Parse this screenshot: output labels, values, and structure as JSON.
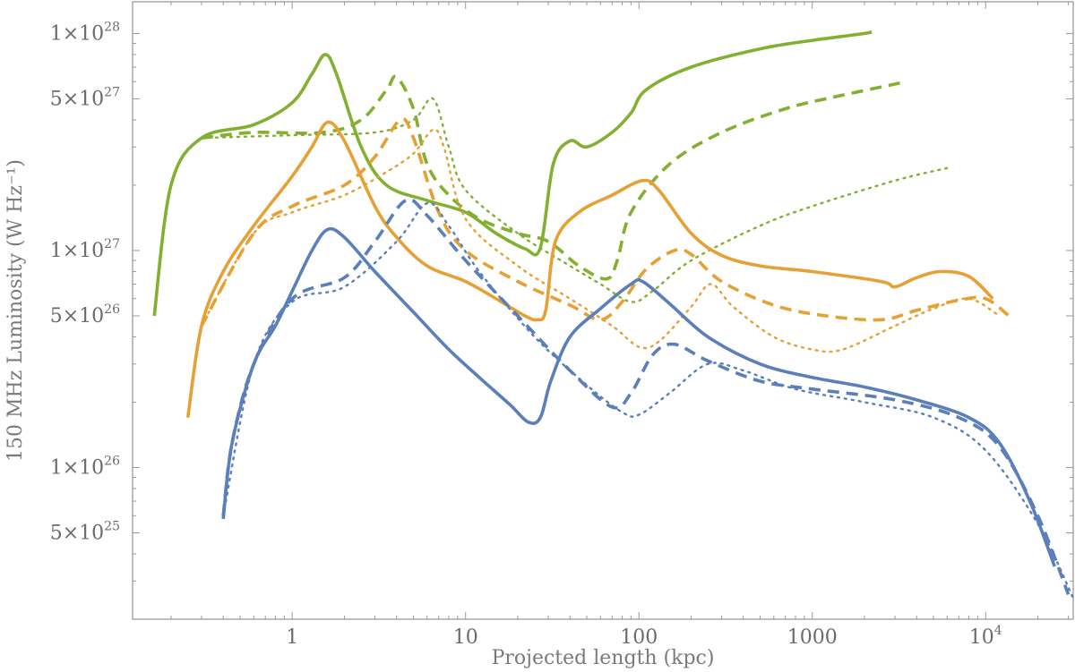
{
  "chart_data": {
    "type": "line",
    "title": "",
    "xlabel": "Projected length (kpc)",
    "ylabel": "150 MHz Luminosity (W Hz⁻¹)",
    "xscale": "log",
    "yscale": "log",
    "xlim": [
      0.12,
      32000
    ],
    "ylim": [
      2e+25,
      1.4e+28
    ],
    "grid": false,
    "x_ticks": [
      {
        "value": 1,
        "label": "1"
      },
      {
        "value": 10,
        "label": "10"
      },
      {
        "value": 100,
        "label": "100"
      },
      {
        "value": 1000,
        "label": "1000"
      },
      {
        "value": 10000,
        "label": "10",
        "sup": "4"
      }
    ],
    "y_ticks": [
      {
        "value": 1e+28,
        "mant": "1×10",
        "sup": "28"
      },
      {
        "value": 5e+27,
        "mant": "5×10",
        "sup": "27"
      },
      {
        "value": 1e+27,
        "mant": "1×10",
        "sup": "27"
      },
      {
        "value": 5e+26,
        "mant": "5×10",
        "sup": "26"
      },
      {
        "value": 1e+26,
        "mant": "1×10",
        "sup": "26"
      },
      {
        "value": 5e+25,
        "mant": "5×10",
        "sup": "25"
      }
    ],
    "colors": {
      "green": "#83b032",
      "orange": "#e6a033",
      "blue": "#5a7fba"
    },
    "series": [
      {
        "name": "green-solid",
        "color": "green",
        "style": "solid",
        "points": [
          [
            0.16,
            5e+26
          ],
          [
            0.2,
            2e+27
          ],
          [
            0.3,
            3.3e+27
          ],
          [
            0.6,
            3.8e+27
          ],
          [
            1.0,
            4.8e+27
          ],
          [
            1.3,
            6.5e+27
          ],
          [
            1.55,
            8e+27
          ],
          [
            1.8,
            6.5e+27
          ],
          [
            2.5,
            3e+27
          ],
          [
            3.5,
            2e+27
          ],
          [
            6,
            1.7e+27
          ],
          [
            10,
            1.5e+27
          ],
          [
            15,
            1.2e+27
          ],
          [
            22,
            1.02e+27
          ],
          [
            27,
            1.03e+27
          ],
          [
            32,
            2.5e+27
          ],
          [
            40,
            3.2e+27
          ],
          [
            50,
            3e+27
          ],
          [
            70,
            3.5e+27
          ],
          [
            90,
            4.3e+27
          ],
          [
            110,
            5.5e+27
          ],
          [
            200,
            7e+27
          ],
          [
            500,
            8.5e+27
          ],
          [
            1000,
            9.3e+27
          ],
          [
            2000,
            1e+28
          ],
          [
            2200,
            1.02e+28
          ]
        ]
      },
      {
        "name": "green-dashed",
        "color": "green",
        "style": "dashed",
        "points": [
          [
            0.3,
            3.3e+27
          ],
          [
            0.6,
            3.5e+27
          ],
          [
            1.5,
            3.5e+27
          ],
          [
            2.5,
            4e+27
          ],
          [
            3.5,
            5.5e+27
          ],
          [
            4,
            6.3e+27
          ],
          [
            5,
            4.5e+27
          ],
          [
            6,
            2.5e+27
          ],
          [
            8,
            1.8e+27
          ],
          [
            12,
            1.4e+27
          ],
          [
            20,
            1.2e+27
          ],
          [
            30,
            1.1e+27
          ],
          [
            45,
            8.5e+26
          ],
          [
            65,
            7.4e+26
          ],
          [
            75,
            9e+26
          ],
          [
            90,
            1.5e+27
          ],
          [
            150,
            2.5e+27
          ],
          [
            300,
            3.5e+27
          ],
          [
            700,
            4.5e+27
          ],
          [
            1500,
            5.2e+27
          ],
          [
            3500,
            6e+27
          ]
        ]
      },
      {
        "name": "green-dotted",
        "color": "green",
        "style": "dotted",
        "points": [
          [
            0.3,
            3.3e+27
          ],
          [
            1,
            3.4e+27
          ],
          [
            3,
            3.5e+27
          ],
          [
            5,
            4e+27
          ],
          [
            6.5,
            5e+27
          ],
          [
            8,
            3e+27
          ],
          [
            10,
            1.9e+27
          ],
          [
            20,
            1.2e+27
          ],
          [
            40,
            8.5e+26
          ],
          [
            60,
            7e+26
          ],
          [
            90,
            5.8e+26
          ],
          [
            120,
            6.5e+26
          ],
          [
            200,
            9e+26
          ],
          [
            500,
            1.3e+27
          ],
          [
            1000,
            1.6e+27
          ],
          [
            3000,
            2.1e+27
          ],
          [
            6000,
            2.4e+27
          ]
        ]
      },
      {
        "name": "orange-solid",
        "color": "orange",
        "style": "solid",
        "points": [
          [
            0.25,
            1.7e+26
          ],
          [
            0.3,
            4.5e+26
          ],
          [
            0.4,
            8e+26
          ],
          [
            0.6,
            1.3e+27
          ],
          [
            1.0,
            2.2e+27
          ],
          [
            1.3,
            3e+27
          ],
          [
            1.6,
            3.9e+27
          ],
          [
            2.0,
            3.2e+27
          ],
          [
            3,
            1.6e+27
          ],
          [
            4,
            1.15e+27
          ],
          [
            6,
            8.5e+26
          ],
          [
            10,
            7.2e+26
          ],
          [
            15,
            6e+26
          ],
          [
            22,
            5e+26
          ],
          [
            26,
            4.8e+26
          ],
          [
            29,
            5.3e+26
          ],
          [
            33,
            1.1e+27
          ],
          [
            45,
            1.5e+27
          ],
          [
            70,
            1.8e+27
          ],
          [
            105,
            2.1e+27
          ],
          [
            130,
            1.9e+27
          ],
          [
            200,
            1.2e+27
          ],
          [
            300,
            9.5e+26
          ],
          [
            500,
            8.5e+26
          ],
          [
            1000,
            8e+26
          ],
          [
            2500,
            7.2e+26
          ],
          [
            3000,
            6.8e+26
          ],
          [
            4000,
            7.5e+26
          ],
          [
            5500,
            8e+26
          ],
          [
            8000,
            7.6e+26
          ],
          [
            11000,
            6e+26
          ]
        ]
      },
      {
        "name": "orange-dashed",
        "color": "orange",
        "style": "dashed",
        "points": [
          [
            0.3,
            4.5e+26
          ],
          [
            0.6,
            1.2e+27
          ],
          [
            1,
            1.6e+27
          ],
          [
            2,
            2e+27
          ],
          [
            3,
            2.7e+27
          ],
          [
            4.2,
            4e+27
          ],
          [
            5,
            3.3e+27
          ],
          [
            7,
            1.5e+27
          ],
          [
            10,
            1e+27
          ],
          [
            20,
            7.2e+26
          ],
          [
            40,
            5.6e+26
          ],
          [
            60,
            4.8e+26
          ],
          [
            80,
            5.8e+26
          ],
          [
            110,
            8.2e+26
          ],
          [
            160,
            1e+27
          ],
          [
            200,
            9.6e+26
          ],
          [
            300,
            7.2e+26
          ],
          [
            600,
            5.6e+26
          ],
          [
            1200,
            5e+26
          ],
          [
            2500,
            4.8e+26
          ],
          [
            4000,
            5.3e+26
          ],
          [
            7000,
            5.9e+26
          ],
          [
            10000,
            6e+26
          ],
          [
            14000,
            4.9e+26
          ]
        ]
      },
      {
        "name": "orange-dotted",
        "color": "orange",
        "style": "dotted",
        "points": [
          [
            0.3,
            4.5e+26
          ],
          [
            0.6,
            1.2e+27
          ],
          [
            1,
            1.5e+27
          ],
          [
            2,
            1.8e+27
          ],
          [
            3.5,
            2.3e+27
          ],
          [
            5,
            2.8e+27
          ],
          [
            6.5,
            3.6e+27
          ],
          [
            7.5,
            3e+27
          ],
          [
            10,
            1.4e+27
          ],
          [
            20,
            8.5e+26
          ],
          [
            40,
            6e+26
          ],
          [
            70,
            4.5e+26
          ],
          [
            100,
            3.6e+26
          ],
          [
            130,
            3.8e+26
          ],
          [
            200,
            5.5e+26
          ],
          [
            260,
            7e+26
          ],
          [
            350,
            5.5e+26
          ],
          [
            600,
            4e+26
          ],
          [
            1000,
            3.5e+26
          ],
          [
            1500,
            3.5e+26
          ],
          [
            3000,
            4.5e+26
          ],
          [
            5000,
            5.4e+26
          ],
          [
            8000,
            6e+26
          ],
          [
            12000,
            5e+26
          ]
        ]
      },
      {
        "name": "blue-solid",
        "color": "blue",
        "style": "solid",
        "points": [
          [
            0.4,
            5.8e+25
          ],
          [
            0.45,
            1.3e+26
          ],
          [
            0.6,
            3e+26
          ],
          [
            0.8,
            4.5e+26
          ],
          [
            1.0,
            6.5e+26
          ],
          [
            1.3,
            1e+27
          ],
          [
            1.6,
            1.25e+27
          ],
          [
            2,
            1.15e+27
          ],
          [
            3,
            8e+26
          ],
          [
            5,
            5.2e+26
          ],
          [
            8,
            3.5e+26
          ],
          [
            12,
            2.6e+26
          ],
          [
            18,
            1.95e+26
          ],
          [
            23,
            1.62e+26
          ],
          [
            27,
            1.7e+26
          ],
          [
            31,
            2.5e+26
          ],
          [
            40,
            4e+26
          ],
          [
            60,
            5.4e+26
          ],
          [
            90,
            7e+26
          ],
          [
            105,
            7.2e+26
          ],
          [
            150,
            5.7e+26
          ],
          [
            250,
            4e+26
          ],
          [
            500,
            3e+26
          ],
          [
            1000,
            2.6e+26
          ],
          [
            2000,
            2.35e+26
          ],
          [
            4000,
            2.05e+26
          ],
          [
            8000,
            1.7e+26
          ],
          [
            12000,
            1.3e+26
          ],
          [
            18000,
            7e+25
          ],
          [
            25000,
            3.5e+25
          ]
        ]
      },
      {
        "name": "blue-dashed",
        "color": "blue",
        "style": "dashed",
        "points": [
          [
            0.4,
            6e+25
          ],
          [
            0.45,
            1.3e+26
          ],
          [
            0.6,
            3e+26
          ],
          [
            1,
            6e+26
          ],
          [
            2,
            7.5e+26
          ],
          [
            3,
            1.1e+27
          ],
          [
            4.5,
            1.7e+27
          ],
          [
            6,
            1.45e+27
          ],
          [
            10,
            9e+26
          ],
          [
            20,
            5e+26
          ],
          [
            40,
            2.8e+26
          ],
          [
            70,
            1.9e+26
          ],
          [
            90,
            2.2e+26
          ],
          [
            120,
            3.3e+26
          ],
          [
            160,
            3.7e+26
          ],
          [
            250,
            3.1e+26
          ],
          [
            500,
            2.5e+26
          ],
          [
            1000,
            2.3e+26
          ],
          [
            3000,
            2.05e+26
          ],
          [
            7000,
            1.7e+26
          ],
          [
            12000,
            1.25e+26
          ],
          [
            20000,
            6e+25
          ],
          [
            30000,
            2.6e+25
          ]
        ]
      },
      {
        "name": "blue-dotted",
        "color": "blue",
        "style": "dotted",
        "points": [
          [
            0.4,
            6e+25
          ],
          [
            0.6,
            3e+26
          ],
          [
            1,
            5.8e+26
          ],
          [
            2,
            6.8e+26
          ],
          [
            4,
            1.1e+27
          ],
          [
            6,
            1.65e+27
          ],
          [
            8,
            1.3e+27
          ],
          [
            12,
            8e+26
          ],
          [
            25,
            4e+26
          ],
          [
            50,
            2.4e+26
          ],
          [
            80,
            1.8e+26
          ],
          [
            100,
            1.75e+26
          ],
          [
            150,
            2.2e+26
          ],
          [
            250,
            3e+26
          ],
          [
            400,
            2.8e+26
          ],
          [
            800,
            2.3e+26
          ],
          [
            2000,
            2e+26
          ],
          [
            5000,
            1.7e+26
          ],
          [
            10000,
            1.2e+26
          ],
          [
            20000,
            5.5e+25
          ],
          [
            32000,
            2.5e+25
          ]
        ]
      }
    ]
  }
}
